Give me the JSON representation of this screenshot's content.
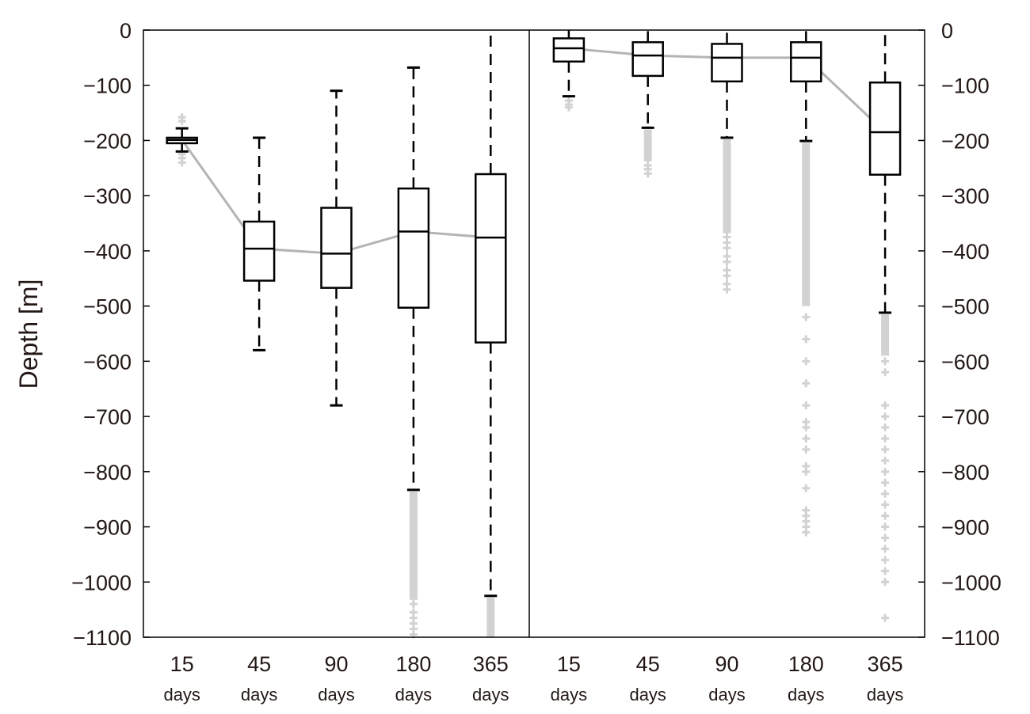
{
  "chart_data": {
    "type": "box",
    "ylabel": "Depth [m]",
    "ylim": [
      -1100,
      0
    ],
    "yticks": [
      "0",
      "−100",
      "−200",
      "−300",
      "−400",
      "−500",
      "−600",
      "−700",
      "−800",
      "−900",
      "−1000",
      "−1100"
    ],
    "ytick_values": [
      0,
      -100,
      -200,
      -300,
      -400,
      -500,
      -600,
      -700,
      -800,
      -900,
      -1000,
      -1100
    ],
    "right_axis_ticks": true,
    "grid": false,
    "colors": {
      "box": "#000000",
      "median_line": "#b4b4b4",
      "outlier": "#d2d2d2"
    },
    "panels": [
      {
        "categories": [
          {
            "number": "15",
            "unit": "days"
          },
          {
            "number": "45",
            "unit": "days"
          },
          {
            "number": "90",
            "unit": "days"
          },
          {
            "number": "180",
            "unit": "days"
          },
          {
            "number": "365",
            "unit": "days"
          }
        ],
        "boxes": [
          {
            "whisker_low": -220,
            "q1": -205,
            "median": -199,
            "q3": -195,
            "whisker_high": -178,
            "outliers_low": [
              -225,
              -232,
              -240
            ],
            "outliers_high": [
              -165,
              -158
            ]
          },
          {
            "whisker_low": -580,
            "q1": -454,
            "median": -396,
            "q3": -347,
            "whisker_high": -195,
            "outliers_low": [],
            "outliers_high": []
          },
          {
            "whisker_low": -680,
            "q1": -467,
            "median": -405,
            "q3": -322,
            "whisker_high": -110,
            "outliers_low": [],
            "outliers_high": []
          },
          {
            "whisker_low": -833,
            "q1": -503,
            "median": -365,
            "q3": -287,
            "whisker_high": -68,
            "outliers_low": [
              -1030,
              -1040,
              -1055,
              -1065,
              -1075,
              -1085,
              -1095
            ],
            "outlier_band": [
              -836,
              -1028
            ]
          },
          {
            "whisker_low": -1025,
            "q1": -566,
            "median": -376,
            "q3": -261,
            "whisker_high": 0,
            "outliers_low": [],
            "outlier_band": [
              -1028,
              -1100
            ]
          }
        ]
      },
      {
        "categories": [
          {
            "number": "15",
            "unit": "days"
          },
          {
            "number": "45",
            "unit": "days"
          },
          {
            "number": "90",
            "unit": "days"
          },
          {
            "number": "180",
            "unit": "days"
          },
          {
            "number": "365",
            "unit": "days"
          }
        ],
        "boxes": [
          {
            "whisker_low": -120,
            "q1": -57,
            "median": -33,
            "q3": -15,
            "whisker_high": 0,
            "outliers_low": [
              -128,
              -135,
              -140
            ],
            "outliers_high": []
          },
          {
            "whisker_low": -177,
            "q1": -83,
            "median": -46,
            "q3": -22,
            "whisker_high": 0,
            "outliers_low": [
              -245,
              -252,
              -260
            ],
            "outlier_band": [
              -180,
              -238
            ]
          },
          {
            "whisker_low": -195,
            "q1": -93,
            "median": -50,
            "q3": -25,
            "whisker_high": 0,
            "outliers_low": [
              -375,
              -385,
              -395,
              -410,
              -420,
              -435,
              -445,
              -460,
              -470
            ],
            "outlier_band": [
              -198,
              -368
            ]
          },
          {
            "whisker_low": -201,
            "q1": -93,
            "median": -50,
            "q3": -22,
            "whisker_high": 0,
            "outliers_low": [
              -520,
              -560,
              -600,
              -640,
              -680,
              -710,
              -720,
              -740,
              -760,
              -790,
              -800,
              -830,
              -870,
              -880,
              -890,
              -900,
              -910
            ],
            "outlier_band": [
              -204,
              -500
            ]
          },
          {
            "whisker_low": -512,
            "q1": -262,
            "median": -185,
            "q3": -95,
            "whisker_high": 0,
            "outliers_low": [
              -600,
              -620,
              -680,
              -700,
              -720,
              -740,
              -760,
              -780,
              -800,
              -820,
              -840,
              -860,
              -880,
              -900,
              -920,
              -940,
              -960,
              -980,
              -1000,
              -1065
            ],
            "outlier_band": [
              -515,
              -590
            ]
          }
        ]
      }
    ]
  }
}
